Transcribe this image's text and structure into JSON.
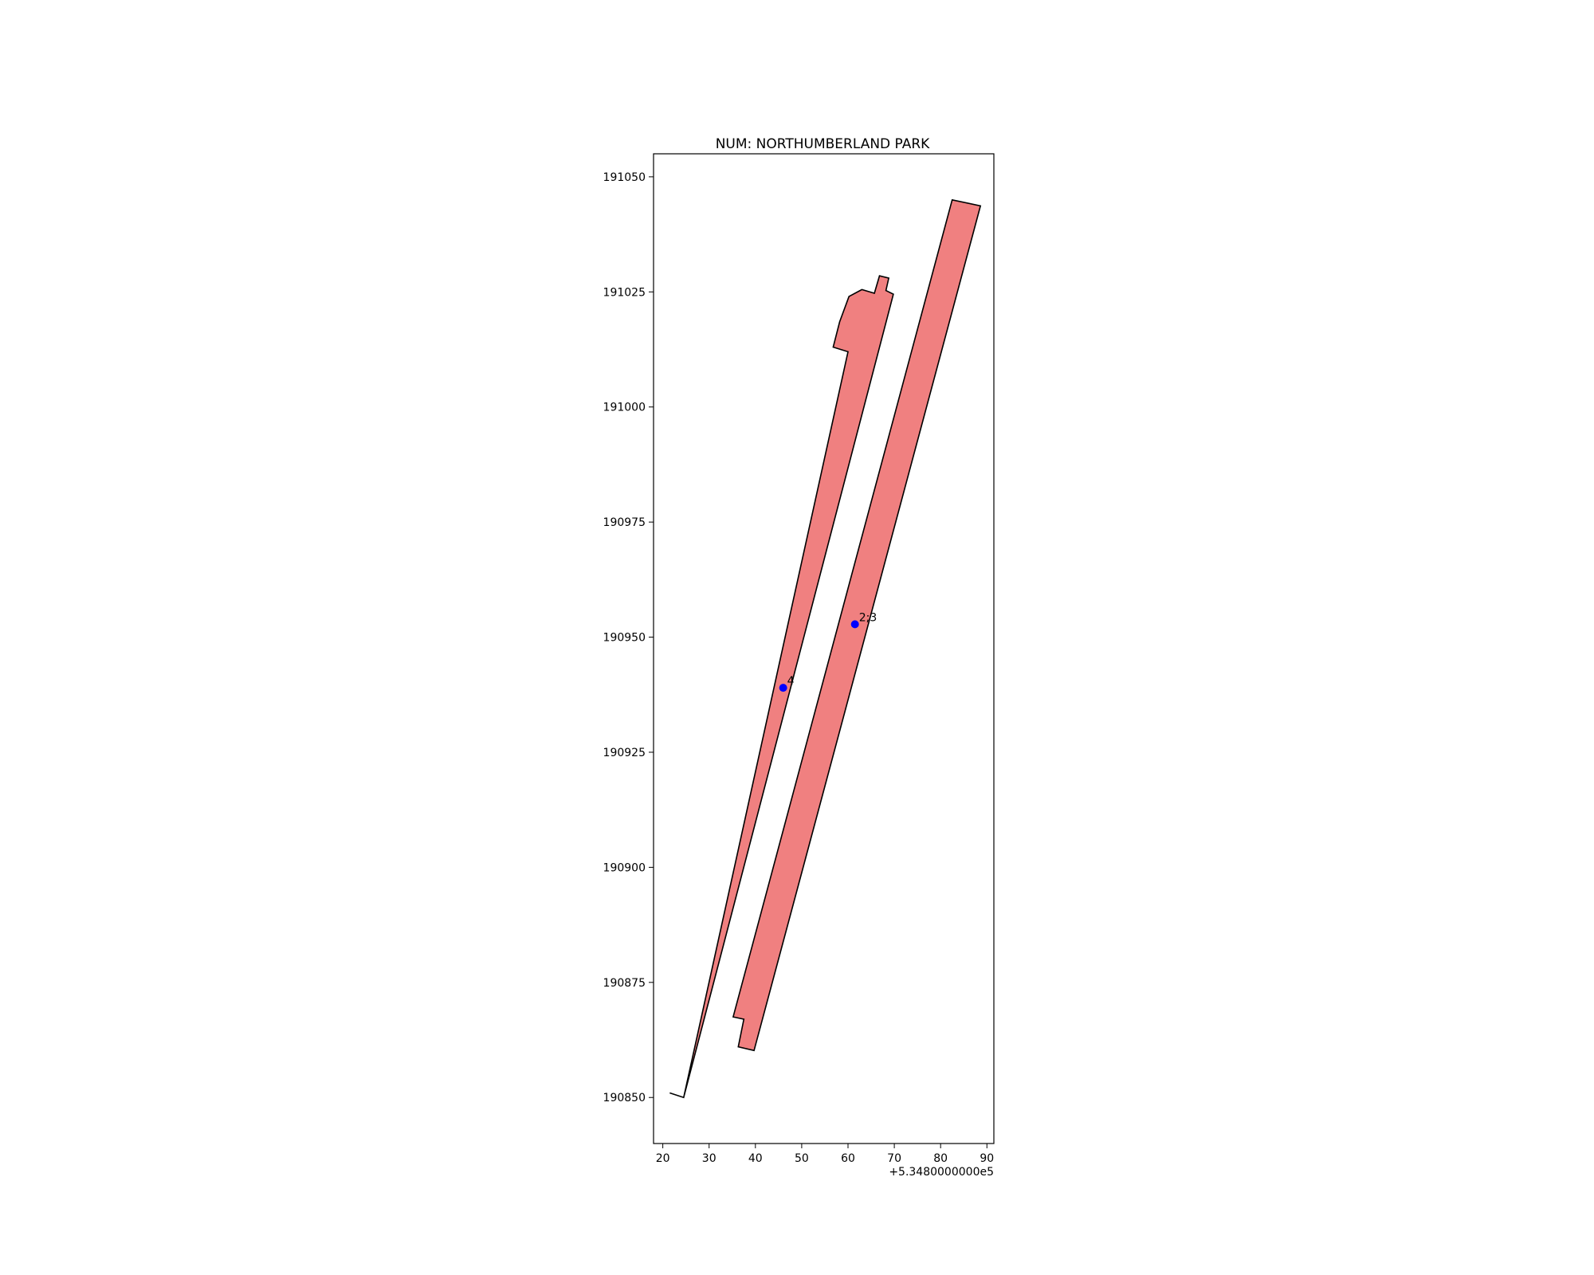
{
  "chart_data": {
    "type": "map",
    "title": "NUM: NORTHUMBERLAND PARK",
    "x_offset_label": "+5.3480000000e5",
    "x_offset": 534800,
    "xlim": [
      18,
      91.5
    ],
    "ylim": [
      190840,
      191055
    ],
    "x_ticks": [
      20,
      30,
      40,
      50,
      60,
      70,
      80,
      90
    ],
    "x_tick_labels": [
      "20",
      "30",
      "40",
      "50",
      "60",
      "70",
      "80",
      "90"
    ],
    "y_ticks": [
      190850,
      190875,
      190900,
      190925,
      190950,
      190975,
      191000,
      191025,
      191050
    ],
    "y_tick_labels": [
      "190850",
      "190875",
      "190900",
      "190925",
      "190950",
      "190975",
      "191000",
      "191025",
      "191050"
    ],
    "grid": false,
    "polygons": [
      {
        "fill": "#f08080",
        "edge": "#000000",
        "points": [
          [
            21.5,
            190851
          ],
          [
            24.5,
            190850
          ],
          [
            60,
            191012
          ],
          [
            56.8,
            191013
          ],
          [
            58.2,
            191018.5
          ],
          [
            60.2,
            191024
          ],
          [
            63,
            191025.5
          ],
          [
            65.7,
            191024.7
          ],
          [
            66.8,
            191028.5
          ],
          [
            68.8,
            191028
          ],
          [
            68.2,
            191025.3
          ],
          [
            69.8,
            191024.5
          ],
          [
            24.5,
            190850
          ]
        ]
      },
      {
        "fill": "#f08080",
        "edge": "#000000",
        "points": [
          [
            35.2,
            190867.5
          ],
          [
            37.5,
            190867
          ],
          [
            36.3,
            190861
          ],
          [
            39.7,
            190860.2
          ],
          [
            88.6,
            191043.7
          ],
          [
            82.5,
            191045
          ],
          [
            35.2,
            190867.5
          ]
        ]
      }
    ],
    "points": [
      {
        "x": 46,
        "y": 190939,
        "label": "4",
        "color": "#0000ff"
      },
      {
        "x": 61.5,
        "y": 190952.8,
        "label": "2;3",
        "color": "#0000ff"
      }
    ]
  }
}
